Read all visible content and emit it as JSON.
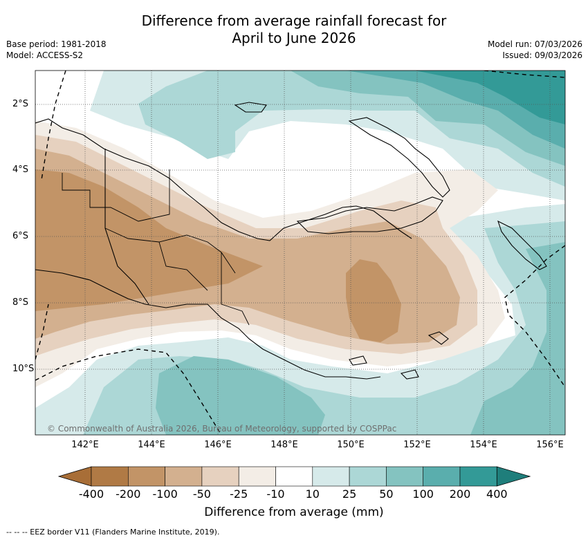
{
  "title_line1": "Difference from average rainfall forecast for",
  "title_line2": "April to June 2026",
  "base_period": "Base period: 1981-2018",
  "model": "Model: ACCESS-S2",
  "model_run": "Model run: 07/03/2026",
  "issued": "Issued: 09/03/2026",
  "lon_ticks": [
    "142°E",
    "144°E",
    "146°E",
    "148°E",
    "150°E",
    "152°E",
    "154°E",
    "156°E"
  ],
  "lat_ticks": [
    "2°S",
    "4°S",
    "6°S",
    "8°S",
    "10°S"
  ],
  "copyright": "© Commonwealth of Australia 2026, Bureau of Meteorology, supported by COSPPac",
  "colorbar": {
    "title": "Difference from average (mm)",
    "labels": [
      "-400",
      "-200",
      "-100",
      "-50",
      "-25",
      "-10",
      "10",
      "25",
      "50",
      "100",
      "200",
      "400"
    ],
    "colors": [
      "#a86e37",
      "#b07a45",
      "#c29467",
      "#d3b08f",
      "#e6d1bf",
      "#f3ede6",
      "#ffffff",
      "#d6eaea",
      "#acd7d6",
      "#84c3c0",
      "#5aaead",
      "#339a97",
      "#1f7e7b"
    ]
  },
  "footnote": "-- -- -- EEZ border V11 (Flanders Marine Institute, 2019)."
}
